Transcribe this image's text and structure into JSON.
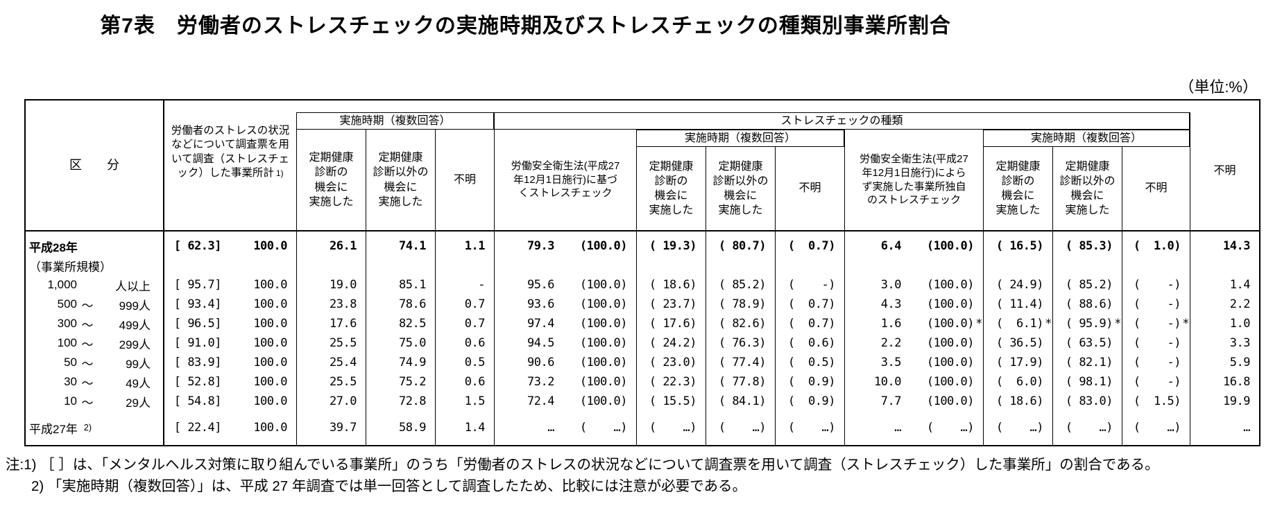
{
  "page": {
    "title": "第7表　労働者のストレスチェックの実施時期及びストレスチェックの種類別事業所割合",
    "unit_label": "（単位:%）"
  },
  "table": {
    "header": {
      "kubun": "区　　分",
      "surveyed_total": "労働者のストレスの状況などについて調査票を用いて調査（ストレスチェック）した事業所計",
      "surveyed_total_note": "1)",
      "timing_group": "実施時期（複数回答）",
      "type_group": "ストレスチェックの種類",
      "col_periodic": "定期健康\n診断の\n機会に\n実施した",
      "col_other": "定期健康\n診断以外の\n機会に\n実施した",
      "col_unknown": "不明",
      "col_based_on_law": "労働安全衛生法(平成27\n年12月1日施行)に基づ\nくストレスチェック",
      "col_independent": "労働安全衛生法(平成27\n年12月1日施行)によら\nず実施した事業所独自\nのストレスチェック"
    },
    "rows": [
      {
        "label": "平成28年",
        "bold": true,
        "values": [
          "[ 62.3]",
          "100.0",
          "26.1",
          "74.1",
          "1.1",
          "79.3",
          "(100.0)",
          "( 19.3)",
          "( 80.7)",
          "(  0.7)",
          "6.4",
          "(100.0)",
          "( 16.5)",
          "( 85.3)",
          "(  1.0)",
          "14.3"
        ]
      },
      {
        "label": "（事業所規模）",
        "values": [
          "",
          "",
          "",
          "",
          "",
          "",
          "",
          "",
          "",
          "",
          "",
          "",
          "",
          "",
          "",
          ""
        ]
      },
      {
        "label_parts": [
          "1,000",
          "",
          "人以上"
        ],
        "values": [
          "[ 95.7]",
          "100.0",
          "19.0",
          "85.1",
          "-",
          "95.6",
          "(100.0)",
          "( 18.6)",
          "( 85.2)",
          "(    -)",
          "3.0",
          "(100.0)",
          "( 24.9)",
          "( 85.2)",
          "(    -)",
          "1.4"
        ]
      },
      {
        "label_parts": [
          "500",
          "～",
          "999人"
        ],
        "values": [
          "[ 93.4]",
          "100.0",
          "23.8",
          "78.6",
          "0.7",
          "93.6",
          "(100.0)",
          "( 23.7)",
          "( 78.9)",
          "(  0.7)",
          "4.3",
          "(100.0)",
          "( 11.4)",
          "( 88.6)",
          "(    -)",
          "2.2"
        ]
      },
      {
        "label_parts": [
          "300",
          "～",
          "499人"
        ],
        "values": [
          "[ 96.5]",
          "100.0",
          "17.6",
          "82.5",
          "0.7",
          "97.4",
          "(100.0)",
          "( 17.6)",
          "( 82.6)",
          "(  0.7)",
          "1.6",
          "(100.0)",
          "(  6.1)",
          "( 95.9)",
          "(    -)",
          "1.0"
        ],
        "star_cols": [
          11,
          12,
          13,
          14
        ]
      },
      {
        "label_parts": [
          "100",
          "～",
          "299人"
        ],
        "values": [
          "[ 91.0]",
          "100.0",
          "25.5",
          "75.0",
          "0.6",
          "94.5",
          "(100.0)",
          "( 24.2)",
          "( 76.3)",
          "(  0.6)",
          "2.2",
          "(100.0)",
          "( 36.5)",
          "( 63.5)",
          "(    -)",
          "3.3"
        ]
      },
      {
        "label_parts": [
          "50",
          "～",
          "99人"
        ],
        "values": [
          "[ 83.9]",
          "100.0",
          "25.4",
          "74.9",
          "0.5",
          "90.6",
          "(100.0)",
          "( 23.0)",
          "( 77.4)",
          "(  0.5)",
          "3.5",
          "(100.0)",
          "( 17.9)",
          "( 82.1)",
          "(    -)",
          "5.9"
        ]
      },
      {
        "label_parts": [
          "30",
          "～",
          "49人"
        ],
        "values": [
          "[ 52.8]",
          "100.0",
          "25.5",
          "75.2",
          "0.6",
          "73.2",
          "(100.0)",
          "( 22.3)",
          "( 77.8)",
          "(  0.9)",
          "10.0",
          "(100.0)",
          "(  6.0)",
          "( 98.1)",
          "(    -)",
          "16.8"
        ]
      },
      {
        "label_parts": [
          "10",
          "～",
          "29人"
        ],
        "values": [
          "[ 54.8]",
          "100.0",
          "27.0",
          "72.8",
          "1.5",
          "72.4",
          "(100.0)",
          "( 15.5)",
          "( 84.1)",
          "(  0.9)",
          "7.7",
          "(100.0)",
          "( 18.6)",
          "( 83.0)",
          "(  1.5)",
          "19.9"
        ]
      },
      {
        "label": "平成27年",
        "label_note": "2)",
        "gap_before": true,
        "values": [
          "[ 22.4]",
          "100.0",
          "39.7",
          "58.9",
          "1.4",
          "…",
          "(    …)",
          "(    …)",
          "(    …)",
          "(    …)",
          "…",
          "(    …)",
          "(    …)",
          "(    …)",
          "(    …)",
          "…"
        ]
      }
    ],
    "notes": [
      "注:1) ［ ］は、「メンタルヘルス対策に取り組んでいる事業所」のうち「労働者のストレスの状況などについて調査票を用いて調査（ストレスチェック）した事業所」の割合である。",
      "2) 「実施時期（複数回答）」は、平成 27 年調査では単一回答として調査したため、比較には注意が必要である。"
    ]
  }
}
